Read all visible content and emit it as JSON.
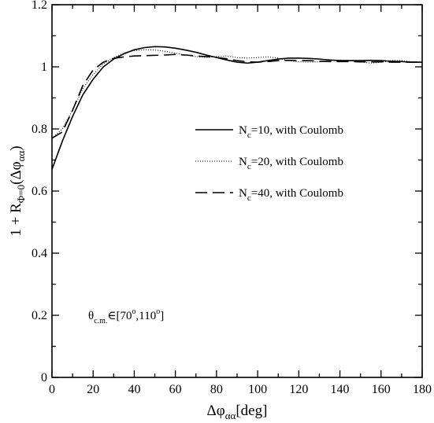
{
  "chart_data": {
    "type": "line",
    "xlabel": {
      "main": "Δφ",
      "sub": "αα",
      "tail": "[deg]"
    },
    "ylabel": {
      "main": "1 + R",
      "sub": "Φ=0",
      "mid": "(Δφ",
      "sub2": "αα",
      "tail": ")"
    },
    "xlim": [
      0,
      180
    ],
    "ylim": [
      0,
      1.2
    ],
    "x_ticks": [
      "0",
      "20",
      "40",
      "60",
      "80",
      "100",
      "120",
      "140",
      "160",
      "180"
    ],
    "y_ticks": [
      "0",
      "0.2",
      "0.4",
      "0.6",
      "0.8",
      "1",
      "1.2"
    ],
    "grid": false,
    "legend_position": "right-middle",
    "annotation": {
      "theta": "θ",
      "sub": "c.m.",
      "text": "∈[70",
      "deg1": "o",
      "comma": ",110",
      "deg2": "o",
      "close": "]"
    },
    "series": [
      {
        "name": {
          "main": "N",
          "sub": "c",
          "rest": "=10, with Coulomb"
        },
        "style": "solid",
        "x": [
          0,
          5,
          10,
          15,
          20,
          25,
          30,
          35,
          40,
          45,
          50,
          55,
          60,
          65,
          70,
          75,
          80,
          85,
          90,
          95,
          100,
          105,
          110,
          115,
          120,
          125,
          130,
          135,
          140,
          145,
          150,
          155,
          160,
          165,
          170,
          175,
          180
        ],
        "y": [
          0.67,
          0.76,
          0.84,
          0.91,
          0.96,
          1.0,
          1.025,
          1.042,
          1.055,
          1.062,
          1.065,
          1.064,
          1.06,
          1.054,
          1.047,
          1.038,
          1.03,
          1.022,
          1.015,
          1.012,
          1.015,
          1.02,
          1.025,
          1.028,
          1.028,
          1.027,
          1.025,
          1.022,
          1.02,
          1.02,
          1.02,
          1.021,
          1.02,
          1.018,
          1.017,
          1.015,
          1.015
        ]
      },
      {
        "name": {
          "main": "N",
          "sub": "c",
          "rest": "=20, with Coulomb"
        },
        "style": "dotted",
        "x": [
          0,
          5,
          10,
          15,
          20,
          25,
          30,
          35,
          40,
          45,
          50,
          55,
          60,
          65,
          70,
          75,
          80,
          85,
          90,
          95,
          100,
          105,
          110,
          115,
          120,
          125,
          130,
          135,
          140,
          145,
          150,
          155,
          160,
          165,
          170,
          175,
          180
        ],
        "y": [
          0.77,
          0.8,
          0.86,
          0.93,
          0.975,
          1.01,
          1.03,
          1.045,
          1.052,
          1.055,
          1.054,
          1.05,
          1.044,
          1.038,
          1.033,
          1.03,
          1.033,
          1.035,
          1.03,
          1.028,
          1.03,
          1.032,
          1.028,
          1.02,
          1.016,
          1.015,
          1.016,
          1.02,
          1.022,
          1.02,
          1.016,
          1.012,
          1.015,
          1.02,
          1.02,
          1.016,
          1.014
        ]
      },
      {
        "name": {
          "main": "N",
          "sub": "c",
          "rest": "=40, with Coulomb"
        },
        "style": "dashed",
        "x": [
          0,
          5,
          10,
          15,
          20,
          25,
          30,
          35,
          40,
          45,
          50,
          55,
          60,
          65,
          70,
          75,
          80,
          85,
          90,
          95,
          100,
          105,
          110,
          115,
          120,
          125,
          130,
          135,
          140,
          145,
          150,
          155,
          160,
          165,
          170,
          175,
          180
        ],
        "y": [
          0.77,
          0.79,
          0.86,
          0.94,
          0.99,
          1.015,
          1.027,
          1.032,
          1.035,
          1.036,
          1.037,
          1.038,
          1.04,
          1.038,
          1.035,
          1.033,
          1.03,
          1.026,
          1.02,
          1.016,
          1.015,
          1.017,
          1.02,
          1.021,
          1.02,
          1.02,
          1.018,
          1.017,
          1.017,
          1.017,
          1.016,
          1.016,
          1.016,
          1.015,
          1.015,
          1.015,
          1.015
        ]
      }
    ]
  }
}
